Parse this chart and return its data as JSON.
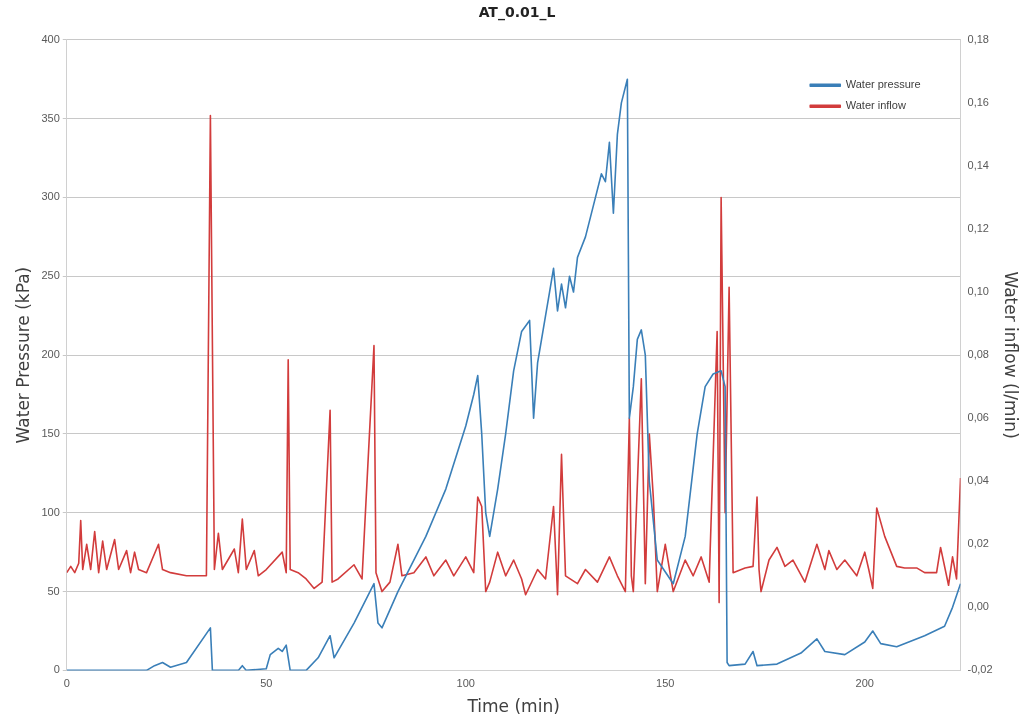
{
  "chart_data": {
    "type": "line",
    "title": "AT_0.01_L",
    "xlabel": "Time (min)",
    "ylabel": "Water Pressure (kPa)",
    "y2label": "Water inflow (l/min)",
    "xlim": [
      0,
      224
    ],
    "xticks": [
      0,
      50,
      100,
      150,
      200
    ],
    "ylim": [
      0,
      400
    ],
    "yticks": [
      0,
      50,
      100,
      150,
      200,
      250,
      300,
      350,
      400
    ],
    "y2lim": [
      -0.02,
      0.18
    ],
    "y2ticks": [
      {
        "value": -0.02,
        "label": "-0,02"
      },
      {
        "value": 0,
        "label": "0,00"
      },
      {
        "value": 0.02,
        "label": "0,02"
      },
      {
        "value": 0.04,
        "label": "0,04"
      },
      {
        "value": 0.06,
        "label": "0,06"
      },
      {
        "value": 0.08,
        "label": "0,08"
      },
      {
        "value": 0.1,
        "label": "0,10"
      },
      {
        "value": 0.12,
        "label": "0,12"
      },
      {
        "value": 0.14,
        "label": "0,14"
      },
      {
        "value": 0.16,
        "label": "0,16"
      },
      {
        "value": 0.18,
        "label": "0,18"
      }
    ],
    "grid": "y",
    "legend": "top right",
    "marker": "none",
    "line_style": "solid",
    "series": [
      {
        "name": "Water pressure",
        "color": "#3a7fb8",
        "x": [
          0,
          20,
          22,
          24,
          26,
          30,
          36,
          36.5,
          43,
          44,
          45,
          50,
          51,
          53,
          54,
          55,
          56,
          60,
          63,
          66,
          67,
          72,
          77,
          78,
          79,
          83,
          90,
          95,
          100,
          102,
          103,
          104,
          105,
          106,
          108,
          110,
          112,
          114,
          116,
          117,
          118,
          120,
          121,
          122,
          123,
          124,
          125,
          126,
          127,
          128,
          130,
          132,
          134,
          135,
          136,
          137,
          138,
          139,
          140.5,
          141,
          142,
          143,
          144,
          145,
          146,
          148,
          152,
          155,
          158,
          160,
          162,
          164,
          165,
          165.5,
          166,
          170,
          172,
          173,
          178,
          184,
          188,
          190,
          195,
          200,
          202,
          204,
          208,
          215,
          220,
          222,
          224
        ],
        "values": [
          0,
          0,
          3,
          5,
          2,
          5,
          27,
          0,
          0,
          3,
          0,
          1,
          10,
          14,
          12,
          16,
          0,
          0,
          8,
          22,
          8,
          30,
          55,
          30,
          27,
          50,
          85,
          115,
          155,
          175,
          187,
          150,
          100,
          85,
          115,
          150,
          190,
          215,
          222,
          160,
          195,
          225,
          240,
          255,
          228,
          245,
          230,
          250,
          240,
          262,
          275,
          295,
          315,
          310,
          335,
          290,
          340,
          360,
          375,
          160,
          180,
          210,
          216,
          200,
          120,
          70,
          55,
          85,
          150,
          180,
          188,
          190,
          180,
          5,
          3,
          4,
          12,
          3,
          4,
          11,
          20,
          12,
          10,
          18,
          25,
          17,
          15,
          22,
          28,
          40,
          55
        ]
      },
      {
        "name": "Water inflow",
        "color": "#d23c3c",
        "axis": "y2",
        "x": [
          0,
          1,
          2,
          3,
          3.5,
          4,
          5,
          6,
          7,
          8,
          9,
          10,
          12,
          13,
          15,
          16,
          17,
          18,
          20,
          23,
          24,
          26,
          30,
          35,
          36,
          37,
          38,
          39,
          42,
          43,
          44,
          45,
          47,
          48,
          50,
          54,
          55,
          55.5,
          56,
          58,
          60,
          62,
          64,
          66,
          66.5,
          68,
          72,
          74,
          77,
          77.5,
          79,
          81,
          83,
          84,
          87,
          90,
          92,
          95,
          97,
          100,
          102,
          103,
          104,
          105,
          106,
          108,
          110,
          112,
          114,
          115,
          118,
          120,
          122,
          123,
          124,
          125,
          128,
          130,
          133,
          136,
          138,
          140,
          141,
          141.5,
          142,
          144,
          145,
          146,
          147,
          148,
          150,
          152,
          155,
          157,
          159,
          161,
          163,
          163.5,
          164,
          165,
          166,
          167,
          170,
          172,
          173,
          173.5,
          174,
          176,
          178,
          180,
          182,
          185,
          188,
          190,
          191,
          193,
          195,
          198,
          200,
          201,
          202,
          203,
          205,
          208,
          210,
          213,
          215,
          218,
          219,
          221,
          222,
          223,
          224
        ],
        "values": [
          0.011,
          0.013,
          0.011,
          0.014,
          0.0275,
          0.012,
          0.02,
          0.012,
          0.024,
          0.011,
          0.021,
          0.012,
          0.0215,
          0.012,
          0.018,
          0.011,
          0.0175,
          0.012,
          0.011,
          0.02,
          0.012,
          0.011,
          0.01,
          0.01,
          0.156,
          0.012,
          0.0235,
          0.012,
          0.0185,
          0.011,
          0.028,
          0.012,
          0.018,
          0.01,
          0.012,
          0.0175,
          0.011,
          0.0785,
          0.012,
          0.011,
          0.009,
          0.006,
          0.008,
          0.0625,
          0.008,
          0.009,
          0.0135,
          0.009,
          0.083,
          0.011,
          0.005,
          0.008,
          0.02,
          0.01,
          0.011,
          0.016,
          0.01,
          0.015,
          0.01,
          0.016,
          0.011,
          0.035,
          0.032,
          0.005,
          0.008,
          0.0175,
          0.01,
          0.015,
          0.009,
          0.004,
          0.012,
          0.009,
          0.032,
          0.004,
          0.0485,
          0.01,
          0.0075,
          0.012,
          0.008,
          0.016,
          0.01,
          0.005,
          0.06,
          0.01,
          0.005,
          0.0725,
          0.0075,
          0.055,
          0.035,
          0.005,
          0.02,
          0.005,
          0.015,
          0.01,
          0.016,
          0.008,
          0.0875,
          0.0015,
          0.13,
          0.03,
          0.1015,
          0.011,
          0.0125,
          0.013,
          0.035,
          0.012,
          0.005,
          0.015,
          0.019,
          0.013,
          0.015,
          0.008,
          0.02,
          0.012,
          0.018,
          0.012,
          0.015,
          0.01,
          0.0175,
          0.012,
          0.006,
          0.0315,
          0.0225,
          0.013,
          0.0125,
          0.0125,
          0.011,
          0.011,
          0.019,
          0.007,
          0.016,
          0.009,
          0.041
        ]
      }
    ]
  }
}
